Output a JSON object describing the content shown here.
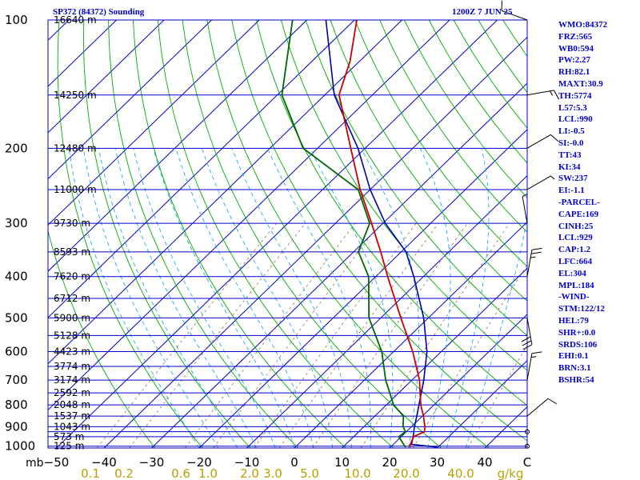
{
  "header": {
    "station": "SP372 (84372) Sounding",
    "datetime": "1200Z  7 JUN 25"
  },
  "indices": [
    "WMO:84372",
    "FRZ:565",
    "WB0:594",
    "PW:2.27",
    "RH:82.1",
    "MAXT:30.9",
    "TH:5774",
    "L57:5.3",
    "LCL:990",
    "LI:-0.5",
    "SI:-0.0",
    "TT:43",
    "KI:34",
    "SW:237",
    "EI:-1.1",
    "-PARCEL-",
    "CAPE:169",
    "CINH:25",
    "LCL:929",
    "CAP:1.2",
    "LFC:664",
    "EL:304",
    "MPL:184",
    "-WIND-",
    "STM:122/12",
    "HEL:79",
    "SHR+:0.0",
    "SRDS:106",
    "EHI:0.1",
    "BRN:3.1",
    "BSHR:54"
  ],
  "colors": {
    "axes": "#0000cc",
    "isobar": "#0000cc",
    "isotherm": "#0000cc",
    "dry_adiabat": "#00aa00",
    "moist_adiabat": "#22aaee",
    "mixing_ratio": "#a08060",
    "temperature": "#cc0000",
    "dewpoint": "#006600",
    "parcel": "#0000aa",
    "wind": "#000000",
    "tick_text": "#000000",
    "mixing_text": "#b8a000"
  },
  "chart_data": {
    "type": "skew-t log-p",
    "pressure_label": "mb",
    "temperature_unit": "C",
    "mixing_ratio_unit": "g/kg",
    "pressure_ticks": [
      100,
      200,
      300,
      400,
      500,
      600,
      700,
      800,
      900,
      1000
    ],
    "isobars": [
      100,
      150,
      200,
      250,
      300,
      350,
      400,
      450,
      500,
      550,
      600,
      650,
      700,
      750,
      800,
      850,
      900,
      925,
      950,
      1000
    ],
    "heights": [
      {
        "p": 100,
        "label": "16640 m"
      },
      {
        "p": 150,
        "label": "14250 m"
      },
      {
        "p": 200,
        "label": "12480 m"
      },
      {
        "p": 250,
        "label": "11000 m"
      },
      {
        "p": 300,
        "label": "9730 m"
      },
      {
        "p": 350,
        "label": "8593 m"
      },
      {
        "p": 400,
        "label": "7620 m"
      },
      {
        "p": 450,
        "label": "6712 m"
      },
      {
        "p": 500,
        "label": "5900 m"
      },
      {
        "p": 550,
        "label": "5128 m"
      },
      {
        "p": 600,
        "label": "4423 m"
      },
      {
        "p": 650,
        "label": "3774 m"
      },
      {
        "p": 700,
        "label": "3174 m"
      },
      {
        "p": 750,
        "label": "2592 m"
      },
      {
        "p": 800,
        "label": "2048 m"
      },
      {
        "p": 850,
        "label": "1537 m"
      },
      {
        "p": 900,
        "label": "1043 m"
      },
      {
        "p": 950,
        "label": "573 m"
      },
      {
        "p": 1000,
        "label": "125 m"
      }
    ],
    "temperature_ticks": [
      -50,
      -40,
      -30,
      -20,
      -10,
      0,
      10,
      20,
      30,
      40
    ],
    "final_tick_label": "C",
    "mixing_ratio_ticks": [
      "0.1",
      "0.2",
      "0.6",
      "1.0",
      "2.0",
      "3.0",
      "5.0",
      "10.0",
      "20.0",
      "40.0"
    ],
    "temperature_profile": [
      {
        "p": 1005,
        "t": 24.2
      },
      {
        "p": 1000,
        "t": 23.8
      },
      {
        "p": 950,
        "t": 22.6
      },
      {
        "p": 925,
        "t": 23.8
      },
      {
        "p": 900,
        "t": 22.8
      },
      {
        "p": 850,
        "t": 20.2
      },
      {
        "p": 800,
        "t": 17.2
      },
      {
        "p": 700,
        "t": 11.6
      },
      {
        "p": 600,
        "t": 4.0
      },
      {
        "p": 500,
        "t": -5.8
      },
      {
        "p": 400,
        "t": -17.5
      },
      {
        "p": 350,
        "t": -24.3
      },
      {
        "p": 300,
        "t": -32.4
      },
      {
        "p": 250,
        "t": -42.1
      },
      {
        "p": 200,
        "t": -53.0
      },
      {
        "p": 150,
        "t": -67.0
      },
      {
        "p": 125,
        "t": -72.0
      },
      {
        "p": 100,
        "t": -79.5
      }
    ],
    "dewpoint_profile": [
      {
        "p": 1005,
        "t": 23.2
      },
      {
        "p": 1000,
        "t": 22.8
      },
      {
        "p": 950,
        "t": 19.5
      },
      {
        "p": 925,
        "t": 19.8
      },
      {
        "p": 900,
        "t": 18.2
      },
      {
        "p": 850,
        "t": 16.0
      },
      {
        "p": 800,
        "t": 11.5
      },
      {
        "p": 700,
        "t": 4.5
      },
      {
        "p": 600,
        "t": -2.5
      },
      {
        "p": 500,
        "t": -12.5
      },
      {
        "p": 400,
        "t": -21.5
      },
      {
        "p": 350,
        "t": -29.0
      },
      {
        "p": 300,
        "t": -32.8
      },
      {
        "p": 250,
        "t": -42.5
      },
      {
        "p": 200,
        "t": -63.0
      },
      {
        "p": 150,
        "t": -79.0
      },
      {
        "p": 100,
        "t": -93.0
      }
    ],
    "parcel_profile": [
      {
        "p": 1005,
        "t": 29.8
      },
      {
        "p": 990,
        "t": 23.8
      },
      {
        "p": 950,
        "t": 22.5
      },
      {
        "p": 900,
        "t": 20.6
      },
      {
        "p": 850,
        "t": 18.8
      },
      {
        "p": 700,
        "t": 12.5
      },
      {
        "p": 600,
        "t": 7.0
      },
      {
        "p": 500,
        "t": -1.0
      },
      {
        "p": 400,
        "t": -12.0
      },
      {
        "p": 350,
        "t": -19.0
      },
      {
        "p": 300,
        "t": -29.5
      },
      {
        "p": 250,
        "t": -40.0
      },
      {
        "p": 200,
        "t": -51.5
      },
      {
        "p": 150,
        "t": -68.0
      },
      {
        "p": 100,
        "t": -86.0
      }
    ],
    "wind_barbs": [
      {
        "p": 100,
        "dir": 290,
        "kt": 10
      },
      {
        "p": 150,
        "dir": 80,
        "kt": 15
      },
      {
        "p": 200,
        "dir": 60,
        "kt": 10
      },
      {
        "p": 250,
        "dir": 60,
        "kt": 5
      },
      {
        "p": 300,
        "dir": 350,
        "kt": 5
      },
      {
        "p": 400,
        "dir": 10,
        "kt": 25
      },
      {
        "p": 500,
        "dir": 170,
        "kt": 30
      },
      {
        "p": 700,
        "dir": 10,
        "kt": 15
      },
      {
        "p": 850,
        "dir": 50,
        "kt": 10
      },
      {
        "p": 925,
        "dir": 0,
        "kt": 0
      },
      {
        "p": 1000,
        "dir": 0,
        "kt": 0
      }
    ]
  }
}
